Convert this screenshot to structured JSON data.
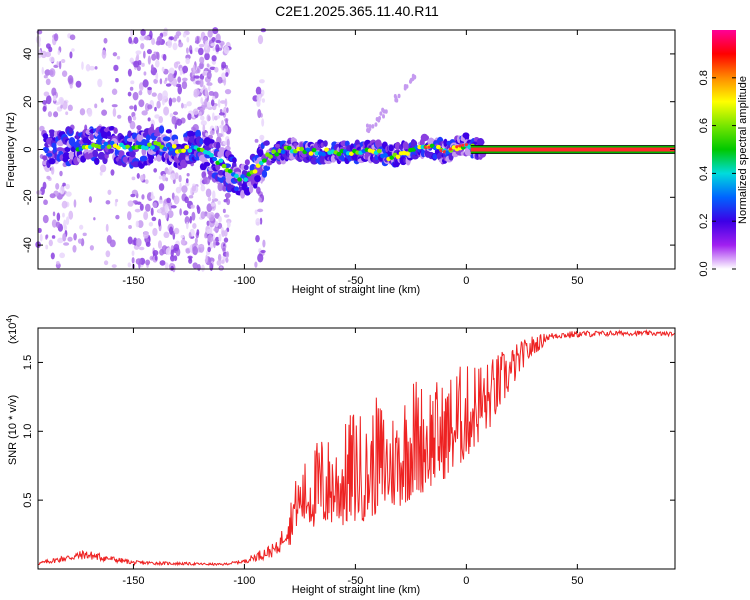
{
  "title": "C2E1.2025.365.11.40.R11",
  "chart_data": [
    {
      "type": "heatmap",
      "name": "spectrogram",
      "xlabel": "Height of straight line (km)",
      "ylabel": "Frequency (Hz)",
      "xlim": [
        -193,
        94
      ],
      "ylim": [
        -50,
        50
      ],
      "xticks": [
        -150,
        -100,
        -50,
        0,
        50
      ],
      "xtick_labels": [
        "-150",
        "-100",
        "-50",
        "0",
        "50"
      ],
      "yticks": [
        -40,
        -20,
        0,
        20,
        40
      ],
      "ytick_labels": [
        "-40",
        "-20",
        "0",
        "20",
        "40"
      ],
      "ridge": {
        "x": [
          -172,
          -160,
          -150,
          -140,
          -130,
          -120,
          -110,
          -105,
          -100,
          -95,
          -90,
          -85,
          -80,
          -70,
          -60,
          -50,
          -40,
          -35,
          -30,
          -25,
          -20,
          -15,
          -10,
          -5,
          0,
          5,
          94
        ],
        "y": [
          1,
          2,
          0,
          2,
          0,
          0,
          -6,
          -11,
          -12,
          -9,
          -3,
          -1,
          0,
          -1,
          -1,
          -1,
          -1,
          -3,
          -2,
          -1,
          1,
          1,
          -1,
          1,
          2,
          0,
          0
        ]
      },
      "colorbar": {
        "label": "Normalized spectral amplitude",
        "range": [
          0,
          1
        ],
        "ticks": [
          0.0,
          0.2,
          0.4,
          0.6,
          0.8
        ],
        "tick_labels": [
          "0.0",
          "0.2",
          "0.4",
          "0.6",
          "0.8"
        ],
        "colors": [
          "#ffffff",
          "#a020f0",
          "#3c00e6",
          "#0064ff",
          "#00dcdc",
          "#00c800",
          "#78e600",
          "#ffff00",
          "#ff8c00",
          "#ff0000",
          "#ff0096"
        ]
      }
    },
    {
      "type": "line",
      "name": "snr",
      "xlabel": "Height of straight line (km)",
      "ylabel": "SNR (10 * v/v)",
      "y_scale_label_base": "(x10",
      "y_scale_label_exp": "4",
      "y_scale_label_close": ")",
      "xlim": [
        -193,
        94
      ],
      "ylim": [
        0,
        1.75
      ],
      "xticks": [
        -150,
        -100,
        -50,
        0,
        50
      ],
      "xtick_labels": [
        "-150",
        "-100",
        "-50",
        "0",
        "50"
      ],
      "yticks": [
        0.5,
        1.0,
        1.5
      ],
      "ytick_labels": [
        "0.5",
        "1.0",
        "1.5"
      ],
      "color": "#ee2222",
      "envelope": {
        "x": [
          -193,
          -172,
          -150,
          -110,
          -100,
          -92,
          -85,
          -80,
          -78,
          -75,
          -70,
          -65,
          -60,
          -55,
          -50,
          -45,
          -40,
          -35,
          -30,
          -25,
          -20,
          -15,
          -10,
          -5,
          0,
          5,
          10,
          15,
          20,
          25,
          30,
          35,
          40,
          50,
          60,
          70,
          80,
          94
        ],
        "base": [
          0.02,
          0.04,
          0.02,
          0.02,
          0.03,
          0.03,
          0.05,
          0.12,
          0.28,
          0.32,
          0.3,
          0.28,
          0.32,
          0.3,
          0.33,
          0.35,
          0.4,
          0.42,
          0.45,
          0.5,
          0.55,
          0.6,
          0.65,
          0.7,
          0.8,
          0.9,
          1.0,
          1.15,
          1.3,
          1.45,
          1.55,
          1.62,
          1.65,
          1.66,
          1.67,
          1.68,
          1.68,
          1.68
        ],
        "top": [
          0.05,
          0.14,
          0.06,
          0.04,
          0.07,
          0.15,
          0.2,
          0.45,
          0.62,
          0.72,
          0.88,
          1.0,
          0.95,
          1.05,
          1.22,
          1.05,
          1.28,
          1.15,
          1.22,
          1.45,
          1.38,
          1.4,
          1.35,
          1.5,
          1.48,
          1.55,
          1.52,
          1.58,
          1.62,
          1.66,
          1.7,
          1.71,
          1.72,
          1.73,
          1.73,
          1.73,
          1.73,
          1.72
        ]
      }
    }
  ]
}
